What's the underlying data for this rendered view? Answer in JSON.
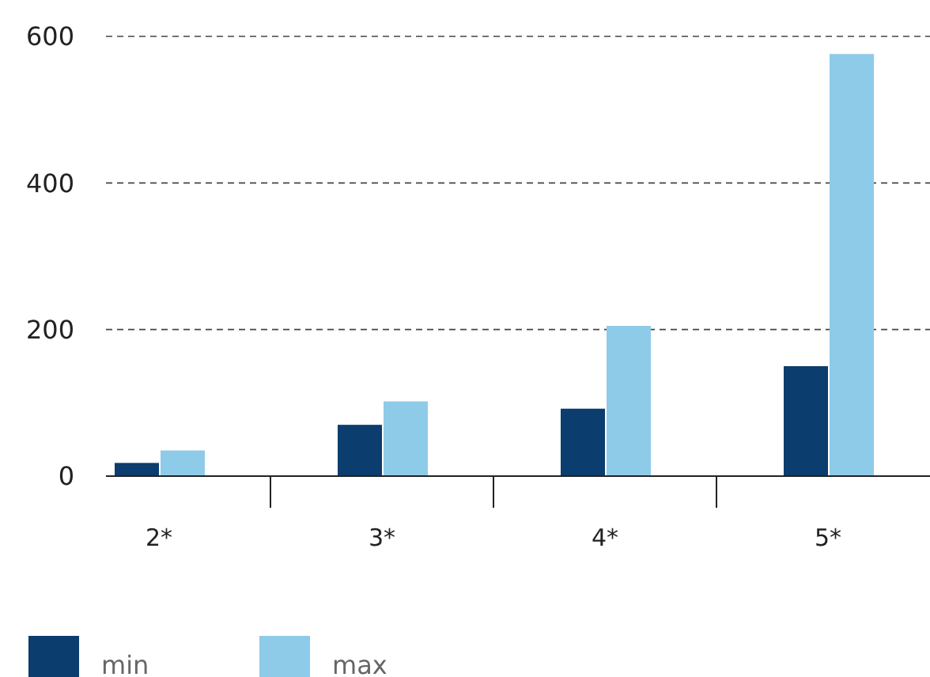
{
  "chart_data": {
    "type": "bar",
    "categories": [
      "2*",
      "3*",
      "4*",
      "5*"
    ],
    "series": [
      {
        "name": "min",
        "color": "#0b3d6e",
        "values": [
          18,
          70,
          92,
          150
        ]
      },
      {
        "name": "max",
        "color": "#8ecbe8",
        "values": [
          35,
          102,
          205,
          576
        ]
      }
    ],
    "ylim": [
      0,
      600
    ],
    "yticks": [
      0,
      200,
      400,
      600
    ],
    "grid": "y",
    "legend": "bottom left"
  }
}
